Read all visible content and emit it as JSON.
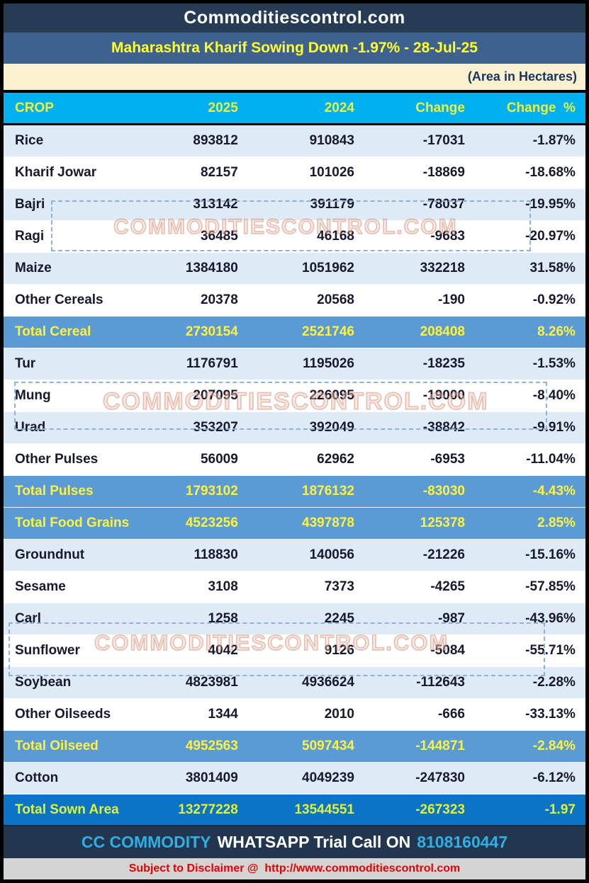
{
  "header": {
    "site_title": "Commoditiescontrol.com",
    "report_title": "Maharashtra Kharif Sowing Down -1.97% - 28-Jul-25",
    "unit_note": "(Area in Hectares)"
  },
  "watermark": {
    "text": "COMMODITIESCONTROL.COM"
  },
  "footer": {
    "brand": "CC COMMODITY",
    "message": "WHATSAPP Trial Call ON",
    "phone": "8108160447",
    "disclaimer": "Subject to Disclaimer @  http://www.commoditiescontrol.com"
  },
  "colors": {
    "topbar_bg": "#263B54",
    "subtitle_bg": "#3E6290",
    "subtitle_text": "#FFFF2F",
    "unit_bg": "#FCF1CF",
    "unit_text": "#17365D",
    "header_row_bg": "#00B0F0",
    "header_row_text": "#E9F23C",
    "light_row_bg": "#DEEAF6",
    "total_row_bg": "#5B9BD5",
    "total_row_text": "#FFF23C",
    "grand_row_bg": "#0B74C6",
    "footer_bg": "#22364F",
    "footer_cyan": "#2EB0E6",
    "disclaimer_bg": "#D4D4D4",
    "disclaimer_text": "#E60000"
  },
  "chart_data": {
    "type": "table",
    "title": "Maharashtra Kharif Sowing Down -1.97% - 28-Jul-25",
    "unit": "(Area in Hectares)",
    "columns": [
      "CROP",
      "2025",
      "2024",
      "Change",
      "Change  %"
    ],
    "rows": [
      {
        "crop": "Rice",
        "y2025": "893812",
        "y2024": "910843",
        "change": "-17031",
        "change_pct": "-1.87%",
        "variant": "data"
      },
      {
        "crop": "Kharif Jowar",
        "y2025": "82157",
        "y2024": "101026",
        "change": "-18869",
        "change_pct": "-18.68%",
        "variant": "data"
      },
      {
        "crop": "Bajri",
        "y2025": "313142",
        "y2024": "391179",
        "change": "-78037",
        "change_pct": "-19.95%",
        "variant": "data"
      },
      {
        "crop": "Ragi",
        "y2025": "36485",
        "y2024": "46168",
        "change": "-9683",
        "change_pct": "-20.97%",
        "variant": "data"
      },
      {
        "crop": "Maize",
        "y2025": "1384180",
        "y2024": "1051962",
        "change": "332218",
        "change_pct": "31.58%",
        "variant": "data"
      },
      {
        "crop": "Other Cereals",
        "y2025": "20378",
        "y2024": "20568",
        "change": "-190",
        "change_pct": "-0.92%",
        "variant": "data"
      },
      {
        "crop": "Total Cereal",
        "y2025": "2730154",
        "y2024": "2521746",
        "change": "208408",
        "change_pct": "8.26%",
        "variant": "total"
      },
      {
        "crop": "Tur",
        "y2025": "1176791",
        "y2024": "1195026",
        "change": "-18235",
        "change_pct": "-1.53%",
        "variant": "data"
      },
      {
        "crop": "Mung",
        "y2025": "207095",
        "y2024": "226095",
        "change": "-19000",
        "change_pct": "-8.40%",
        "variant": "data"
      },
      {
        "crop": "Urad",
        "y2025": "353207",
        "y2024": "392049",
        "change": "-38842",
        "change_pct": "-9.91%",
        "variant": "data"
      },
      {
        "crop": "Other Pulses",
        "y2025": "56009",
        "y2024": "62962",
        "change": "-6953",
        "change_pct": "-11.04%",
        "variant": "data"
      },
      {
        "crop": "Total Pulses",
        "y2025": "1793102",
        "y2024": "1876132",
        "change": "-83030",
        "change_pct": "-4.43%",
        "variant": "total"
      },
      {
        "crop": "Total Food Grains",
        "y2025": "4523256",
        "y2024": "4397878",
        "change": "125378",
        "change_pct": "2.85%",
        "variant": "total"
      },
      {
        "crop": "Groundnut",
        "y2025": "118830",
        "y2024": "140056",
        "change": "-21226",
        "change_pct": "-15.16%",
        "variant": "data"
      },
      {
        "crop": "Sesame",
        "y2025": "3108",
        "y2024": "7373",
        "change": "-4265",
        "change_pct": "-57.85%",
        "variant": "data"
      },
      {
        "crop": "Carl",
        "y2025": "1258",
        "y2024": "2245",
        "change": "-987",
        "change_pct": "-43.96%",
        "variant": "data"
      },
      {
        "crop": "Sunflower",
        "y2025": "4042",
        "y2024": "9126",
        "change": "-5084",
        "change_pct": "-55.71%",
        "variant": "data"
      },
      {
        "crop": "Soybean",
        "y2025": "4823981",
        "y2024": "4936624",
        "change": "-112643",
        "change_pct": "-2.28%",
        "variant": "data"
      },
      {
        "crop": "Other Oilseeds",
        "y2025": "1344",
        "y2024": "2010",
        "change": "-666",
        "change_pct": "-33.13%",
        "variant": "data"
      },
      {
        "crop": "Total Oilseed",
        "y2025": "4952563",
        "y2024": "5097434",
        "change": "-144871",
        "change_pct": "-2.84%",
        "variant": "total"
      },
      {
        "crop": "Cotton",
        "y2025": "3801409",
        "y2024": "4049239",
        "change": "-247830",
        "change_pct": "-6.12%",
        "variant": "data"
      },
      {
        "crop": "Total Sown Area",
        "y2025": "13277228",
        "y2024": "13544551",
        "change": "-267323",
        "change_pct": "-1.97",
        "variant": "grand"
      }
    ]
  }
}
